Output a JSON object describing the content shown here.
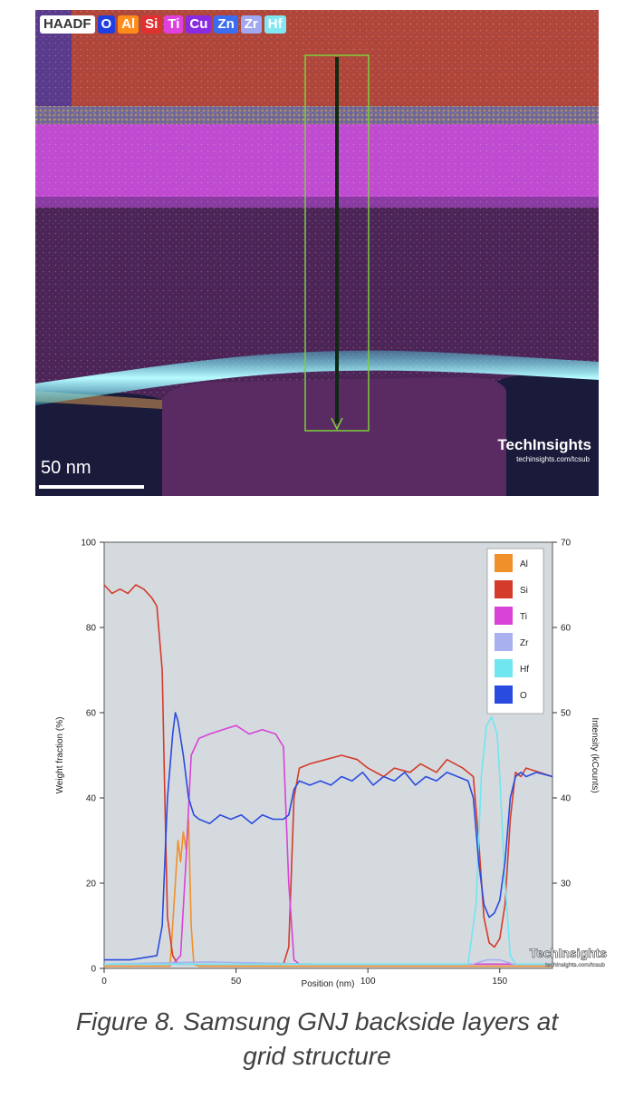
{
  "map": {
    "legend_chips": [
      {
        "label": "HAADF",
        "color": "#ffffff",
        "text_color": "#333333"
      },
      {
        "label": "O",
        "color": "#1f3fe0",
        "text_color": "#ffffff"
      },
      {
        "label": "Al",
        "color": "#ff8c1a",
        "text_color": "#ffffff"
      },
      {
        "label": "Si",
        "color": "#e03030",
        "text_color": "#ffffff"
      },
      {
        "label": "Ti",
        "color": "#e040e0",
        "text_color": "#ffffff"
      },
      {
        "label": "Cu",
        "color": "#8a2be2",
        "text_color": "#ffffff"
      },
      {
        "label": "Zn",
        "color": "#3a6df0",
        "text_color": "#ffffff"
      },
      {
        "label": "Zr",
        "color": "#9fa8f0",
        "text_color": "#ffffff"
      },
      {
        "label": "Hf",
        "color": "#7fe8f0",
        "text_color": "#ffffff"
      }
    ],
    "scale_label": "50 nm",
    "brand": "TechInsights",
    "brand_url": "techinsights.com/tcsub"
  },
  "chart_data": {
    "type": "line",
    "xlabel": "Position (nm)",
    "ylabel_left": "Weight fraction (%)",
    "ylabel_right": "Intensity (kCounts)",
    "xlim": [
      0,
      170
    ],
    "ylim_left": [
      0,
      100
    ],
    "ylim_right": [
      20,
      70
    ],
    "x_ticks": [
      0,
      50,
      100,
      150
    ],
    "y_ticks_left": [
      0,
      20,
      40,
      60,
      80,
      100
    ],
    "y_ticks_right": [
      30,
      40,
      50,
      60,
      70
    ],
    "legend_position": "top-right",
    "brand": "TechInsights",
    "brand_url": "techinsights.com/tcsub",
    "series": [
      {
        "name": "Al",
        "color": "#f0902a",
        "x": [
          0,
          25,
          27,
          28,
          29,
          30,
          31,
          32,
          33,
          34,
          36,
          40,
          80,
          140,
          170
        ],
        "y": [
          0.5,
          0.5,
          20,
          30,
          25,
          32,
          28,
          35,
          10,
          1,
          0.5,
          0.5,
          0.5,
          0.5,
          0.5
        ]
      },
      {
        "name": "Si",
        "color": "#d43b2a",
        "x": [
          0,
          3,
          6,
          9,
          12,
          15,
          18,
          20,
          22,
          23,
          24,
          26,
          28,
          30,
          40,
          60,
          68,
          70,
          72,
          74,
          78,
          84,
          90,
          96,
          100,
          106,
          110,
          116,
          120,
          126,
          130,
          136,
          140,
          142,
          144,
          146,
          148,
          150,
          152,
          154,
          156,
          158,
          160,
          165,
          170
        ],
        "y": [
          90,
          88,
          89,
          88,
          90,
          89,
          87,
          85,
          70,
          40,
          12,
          3,
          1,
          1,
          1,
          1,
          1,
          5,
          40,
          47,
          48,
          49,
          50,
          49,
          47,
          45,
          47,
          46,
          48,
          46,
          49,
          47,
          45,
          30,
          12,
          6,
          5,
          7,
          15,
          35,
          46,
          45,
          47,
          46,
          45
        ]
      },
      {
        "name": "Ti",
        "color": "#d843d8",
        "x": [
          0,
          26,
          29,
          31,
          33,
          36,
          40,
          45,
          50,
          55,
          60,
          65,
          68,
          70,
          72,
          74,
          80,
          170
        ],
        "y": [
          1,
          1,
          3,
          25,
          50,
          54,
          55,
          56,
          57,
          55,
          56,
          55,
          52,
          20,
          2,
          1,
          1,
          1
        ]
      },
      {
        "name": "Zr",
        "color": "#a8b0f0",
        "x": [
          0,
          40,
          80,
          120,
          140,
          145,
          148,
          150,
          155,
          170
        ],
        "y": [
          1,
          1.5,
          1,
          1,
          1,
          2,
          2,
          2,
          1,
          1
        ]
      },
      {
        "name": "Hf",
        "color": "#6fe6f0",
        "x": [
          0,
          130,
          138,
          141,
          143,
          145,
          147,
          149,
          150,
          152,
          154,
          156,
          160,
          170
        ],
        "y": [
          1,
          1,
          1,
          15,
          45,
          57,
          59,
          55,
          45,
          20,
          3,
          1,
          1,
          1
        ]
      },
      {
        "name": "O",
        "color": "#2a4be0",
        "x": [
          0,
          10,
          20,
          22,
          24,
          26,
          27,
          28,
          30,
          32,
          34,
          36,
          40,
          44,
          48,
          52,
          56,
          60,
          64,
          68,
          70,
          72,
          74,
          78,
          82,
          86,
          90,
          94,
          98,
          102,
          106,
          110,
          114,
          118,
          122,
          126,
          130,
          134,
          138,
          140,
          142,
          144,
          146,
          148,
          150,
          152,
          154,
          156,
          158,
          160,
          164,
          170
        ],
        "y": [
          2,
          2,
          3,
          10,
          40,
          55,
          60,
          58,
          50,
          40,
          36,
          35,
          34,
          36,
          35,
          36,
          34,
          36,
          35,
          35,
          36,
          42,
          44,
          43,
          44,
          43,
          45,
          44,
          46,
          43,
          45,
          44,
          46,
          43,
          45,
          44,
          46,
          45,
          44,
          40,
          25,
          15,
          12,
          13,
          16,
          25,
          40,
          45,
          46,
          45,
          46,
          45
        ]
      }
    ]
  },
  "caption": {
    "line1": "Figure 8. Samsung GNJ backside layers at",
    "line2": "grid structure"
  }
}
